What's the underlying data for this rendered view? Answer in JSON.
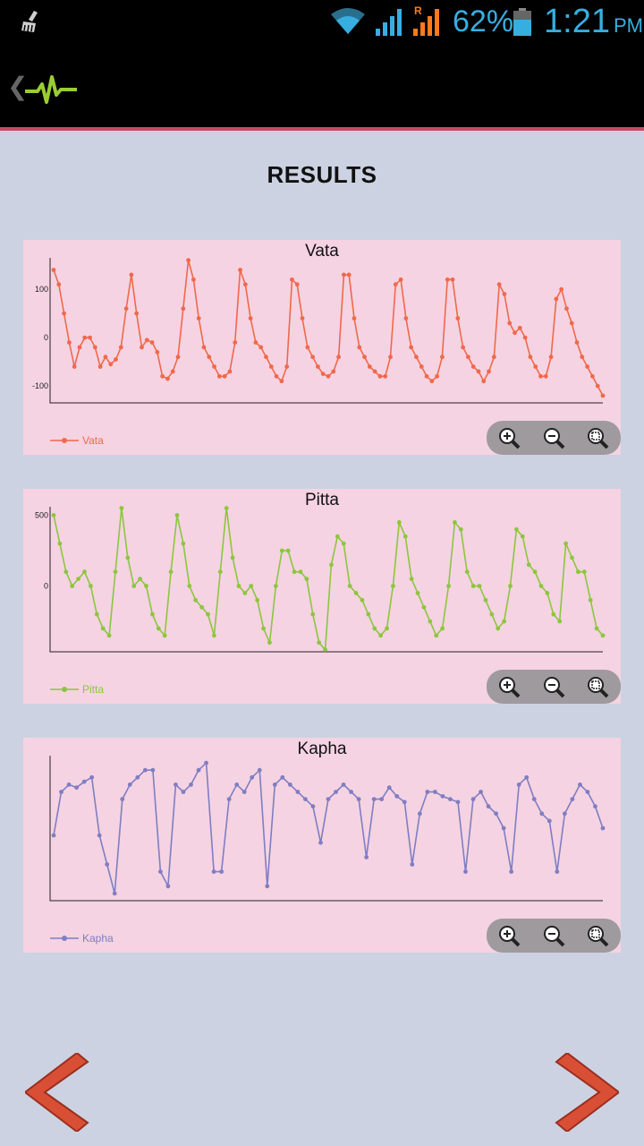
{
  "status_bar": {
    "battery_percent": "62%",
    "time": "1:21",
    "ampm": "PM",
    "roaming_label": "R",
    "icons": [
      "cleaner-icon",
      "wifi-icon",
      "signal-icon",
      "roaming-signal-icon",
      "battery-icon"
    ]
  },
  "action_bar": {
    "up_glyph": "❮",
    "logo": "heartbeat-logo-icon"
  },
  "page": {
    "title": "RESULTS"
  },
  "colors": {
    "vata": "#f0694a",
    "pitta": "#8cc63e",
    "kapha": "#7f7ec3",
    "panel": "#f5d3e2",
    "background": "#ccd2e2",
    "accent": "#c94a63",
    "arrow": "#d94f35"
  },
  "zoom_controls": [
    "zoom-in-icon",
    "zoom-out-icon",
    "zoom-reset-icon"
  ],
  "chart_data": [
    {
      "type": "line",
      "title": "Vata",
      "series": [
        {
          "name": "Vata",
          "color": "#f0694a"
        }
      ],
      "ytick_labels": [
        "100",
        "0",
        "-100"
      ],
      "yticks": [
        100,
        0,
        -100
      ],
      "ylim": [
        -135,
        165
      ],
      "legend": "bottom-left",
      "y": [
        140,
        110,
        50,
        -10,
        -60,
        -20,
        0,
        0,
        -20,
        -60,
        -40,
        -55,
        -45,
        -20,
        60,
        130,
        50,
        -20,
        -5,
        -10,
        -30,
        -80,
        -85,
        -70,
        -40,
        60,
        160,
        120,
        40,
        -20,
        -40,
        -60,
        -80,
        -80,
        -70,
        -10,
        140,
        110,
        40,
        -10,
        -20,
        -40,
        -60,
        -80,
        -90,
        -60,
        120,
        110,
        40,
        -20,
        -40,
        -60,
        -75,
        -80,
        -70,
        -40,
        130,
        130,
        40,
        -20,
        -40,
        -60,
        -70,
        -80,
        -80,
        -40,
        110,
        120,
        40,
        -20,
        -40,
        -60,
        -80,
        -90,
        -80,
        -40,
        120,
        120,
        40,
        -20,
        -40,
        -60,
        -70,
        -90,
        -70,
        -40,
        110,
        90,
        30,
        10,
        20,
        0,
        -40,
        -60,
        -80,
        -80,
        -40,
        80,
        100,
        60,
        30,
        -10,
        -40,
        -60,
        -80,
        -100,
        -120
      ]
    },
    {
      "type": "line",
      "title": "Pitta",
      "series": [
        {
          "name": "Pitta",
          "color": "#8cc63e"
        }
      ],
      "ytick_labels": [
        "500",
        "0"
      ],
      "yticks": [
        500,
        0
      ],
      "ylim": [
        -465,
        560
      ],
      "legend": "bottom-left",
      "y": [
        500,
        300,
        100,
        0,
        50,
        100,
        0,
        -200,
        -300,
        -350,
        100,
        550,
        200,
        0,
        50,
        0,
        -200,
        -300,
        -350,
        100,
        500,
        300,
        0,
        -100,
        -150,
        -200,
        -350,
        100,
        550,
        200,
        0,
        -50,
        0,
        -100,
        -300,
        -400,
        0,
        250,
        250,
        100,
        100,
        50,
        -200,
        -400,
        -450,
        150,
        350,
        300,
        0,
        -50,
        -100,
        -200,
        -300,
        -350,
        -300,
        0,
        450,
        350,
        50,
        -50,
        -150,
        -250,
        -350,
        -300,
        0,
        450,
        400,
        100,
        0,
        0,
        -100,
        -200,
        -300,
        -250,
        0,
        400,
        350,
        150,
        100,
        0,
        -50,
        -200,
        -250,
        300,
        200,
        100,
        100,
        -100,
        -300,
        -350
      ]
    },
    {
      "type": "line",
      "title": "Kapha",
      "series": [
        {
          "name": "Kapha",
          "color": "#7f7ec3"
        }
      ],
      "ytick_labels": [],
      "yticks": [],
      "ylim": [
        0,
        100
      ],
      "legend": "bottom-left",
      "y": [
        45,
        75,
        80,
        78,
        82,
        85,
        45,
        25,
        5,
        70,
        80,
        85,
        90,
        90,
        20,
        10,
        80,
        75,
        80,
        90,
        95,
        20,
        20,
        70,
        80,
        75,
        85,
        90,
        10,
        80,
        85,
        80,
        75,
        70,
        65,
        40,
        70,
        75,
        80,
        75,
        70,
        30,
        70,
        70,
        78,
        72,
        68,
        25,
        60,
        75,
        75,
        72,
        70,
        68,
        20,
        70,
        75,
        65,
        60,
        50,
        20,
        80,
        85,
        70,
        60,
        55,
        20,
        60,
        70,
        80,
        75,
        65,
        50
      ]
    }
  ]
}
